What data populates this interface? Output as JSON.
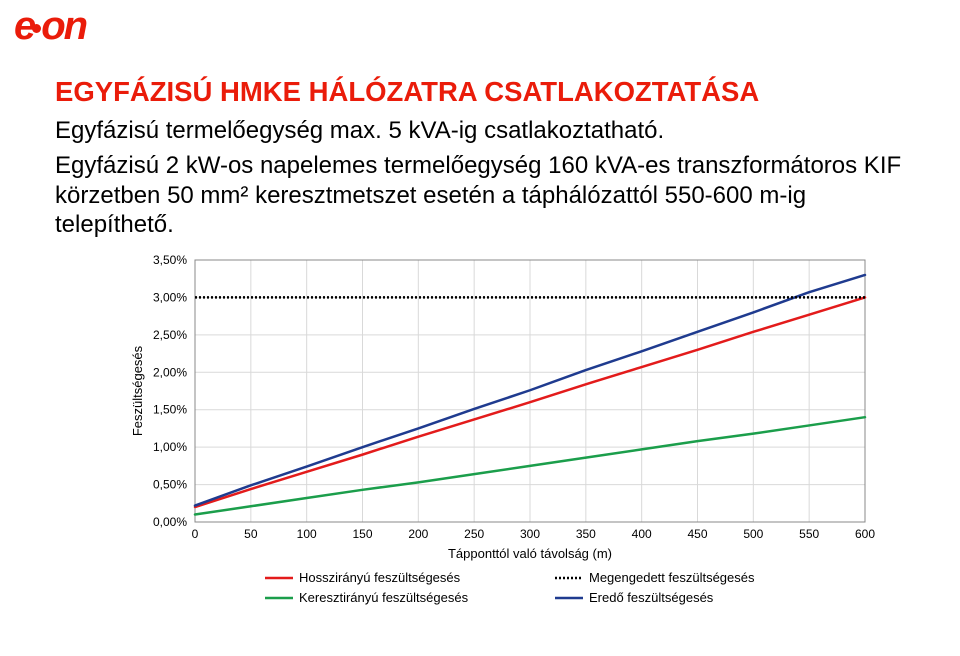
{
  "logo": {
    "text": "e·on"
  },
  "title": "EGYFÁZISÚ HMKE HÁLÓZATRA CSATLAKOZTATÁSA",
  "paragraph_line1": "Egyfázisú termelőegység max. 5 kVA-ig csatlakoztatható.",
  "paragraph_line2": "Egyfázisú 2 kW-os napelemes termelőegység 160 kVA-es transzformátoros KIF körzetben 50 mm² keresztmetszet esetén a táphálózattól 550-600 m-ig telepíthető.",
  "chart": {
    "type": "line",
    "background_color": "#ffffff",
    "plot_background": "#ffffff",
    "grid_color": "#d9d9d9",
    "border_color": "#888888",
    "xlabel": "Tápponttól való távolság (m)",
    "ylabel": "Feszültségesés",
    "x": {
      "min": 0,
      "max": 600,
      "ticks": [
        0,
        50,
        100,
        150,
        200,
        250,
        300,
        350,
        400,
        450,
        500,
        550,
        600
      ]
    },
    "y": {
      "min": 0.0,
      "max": 3.5,
      "ticks": [
        {
          "v": 0.0,
          "label": "0,00%"
        },
        {
          "v": 0.5,
          "label": "0,50%"
        },
        {
          "v": 1.0,
          "label": "1,00%"
        },
        {
          "v": 1.5,
          "label": "1,50%"
        },
        {
          "v": 2.0,
          "label": "2,00%"
        },
        {
          "v": 2.5,
          "label": "2,50%"
        },
        {
          "v": 3.0,
          "label": "3,00%"
        },
        {
          "v": 3.5,
          "label": "3,50%"
        }
      ]
    },
    "reference_line": {
      "y": 3.0,
      "color": "#000000",
      "dash": true
    },
    "series": [
      {
        "name": "Hosszirányú feszültségesés",
        "color": "#e31b1b",
        "width": 2.5,
        "points": [
          [
            0,
            0.2
          ],
          [
            50,
            0.44
          ],
          [
            100,
            0.67
          ],
          [
            150,
            0.9
          ],
          [
            200,
            1.14
          ],
          [
            250,
            1.37
          ],
          [
            300,
            1.6
          ],
          [
            350,
            1.84
          ],
          [
            400,
            2.07
          ],
          [
            450,
            2.3
          ],
          [
            500,
            2.54
          ],
          [
            550,
            2.77
          ],
          [
            600,
            3.0
          ]
        ]
      },
      {
        "name": "Keresztirányú feszültségesés",
        "color": "#1b9e4b",
        "width": 2.5,
        "points": [
          [
            0,
            0.1
          ],
          [
            50,
            0.21
          ],
          [
            100,
            0.32
          ],
          [
            150,
            0.43
          ],
          [
            200,
            0.53
          ],
          [
            250,
            0.64
          ],
          [
            300,
            0.75
          ],
          [
            350,
            0.86
          ],
          [
            400,
            0.97
          ],
          [
            450,
            1.08
          ],
          [
            500,
            1.18
          ],
          [
            550,
            1.29
          ],
          [
            600,
            1.4
          ]
        ]
      },
      {
        "name": "Megengedett feszültségesés",
        "color": "#000000",
        "width": 2.5,
        "dash": true,
        "points": [
          [
            0,
            3.0
          ],
          [
            600,
            3.0
          ]
        ]
      },
      {
        "name": "Eredő feszültségesés",
        "color": "#1f3b8f",
        "width": 2.5,
        "points": [
          [
            0,
            0.22
          ],
          [
            50,
            0.49
          ],
          [
            100,
            0.74
          ],
          [
            150,
            1.0
          ],
          [
            200,
            1.25
          ],
          [
            250,
            1.51
          ],
          [
            300,
            1.76
          ],
          [
            350,
            2.03
          ],
          [
            400,
            2.28
          ],
          [
            450,
            2.54
          ],
          [
            500,
            2.8
          ],
          [
            550,
            3.07
          ],
          [
            600,
            3.3
          ]
        ]
      }
    ],
    "legend": [
      {
        "label": "Hosszirányú feszültségesés",
        "color": "#e31b1b",
        "dash": false
      },
      {
        "label": "Megengedett feszültségesés",
        "color": "#000000",
        "dash": true
      },
      {
        "label": "Keresztirányú feszültségesés",
        "color": "#1b9e4b",
        "dash": false
      },
      {
        "label": "Eredő feszültségesés",
        "color": "#1f3b8f",
        "dash": false
      }
    ],
    "legend_layout": {
      "cols": 2,
      "rows": 2
    },
    "title_color": "#ea1c0a",
    "title_fontsize": 27.5,
    "paragraph_fontsize": 24,
    "tick_fontsize": 12,
    "axis_title_fontsize": 13,
    "legend_fontsize": 13
  }
}
